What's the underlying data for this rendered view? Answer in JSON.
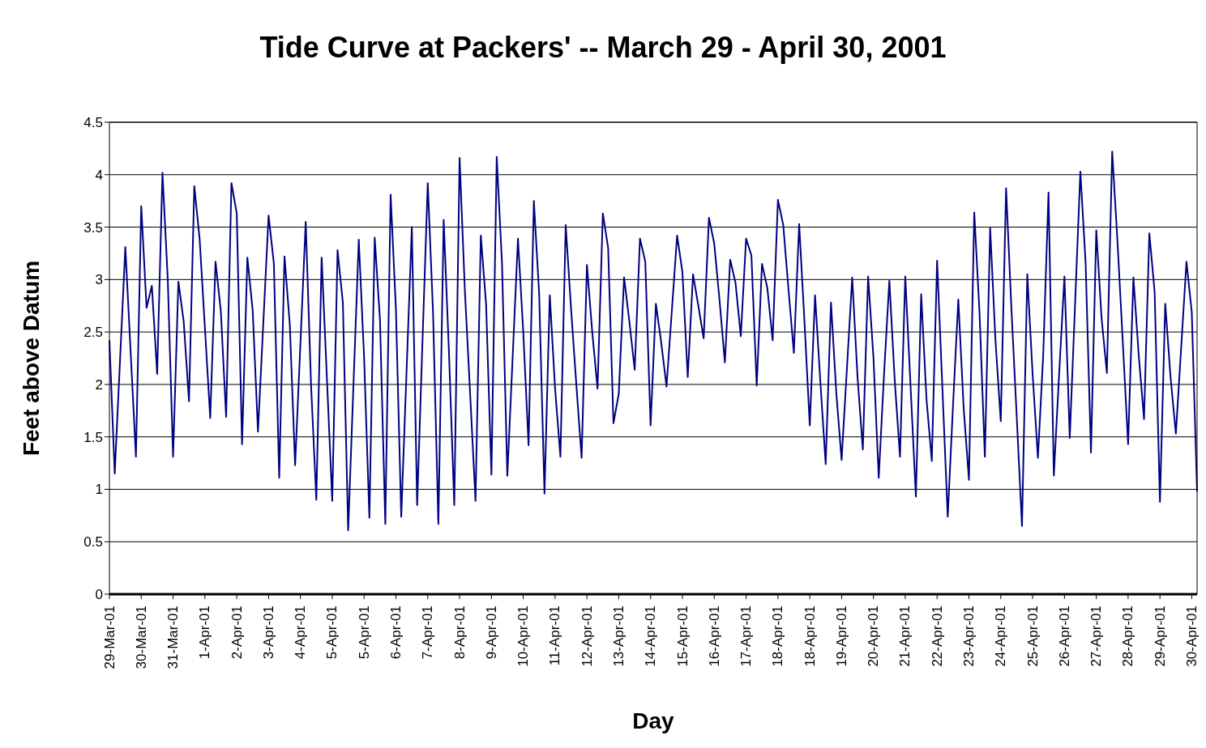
{
  "chart_data": {
    "type": "line",
    "title": "Tide Curve at Packers' --  March 29 - April 30, 2001",
    "xlabel": "Day",
    "ylabel": "Feet above Datum",
    "categories": [
      "29-Mar-01",
      null,
      null,
      null,
      null,
      null,
      "30-Mar-01",
      null,
      null,
      null,
      null,
      null,
      "31-Mar-01",
      null,
      null,
      null,
      null,
      null,
      "1-Apr-01",
      null,
      null,
      null,
      null,
      null,
      "2-Apr-01",
      null,
      null,
      null,
      null,
      null,
      "3-Apr-01",
      null,
      null,
      null,
      null,
      null,
      "4-Apr-01",
      null,
      null,
      null,
      null,
      null,
      "5-Apr-01",
      null,
      null,
      null,
      null,
      null,
      "5-Apr-01",
      null,
      null,
      null,
      null,
      null,
      "6-Apr-01",
      null,
      null,
      null,
      null,
      null,
      "7-Apr-01",
      null,
      null,
      null,
      null,
      null,
      "8-Apr-01",
      null,
      null,
      null,
      null,
      null,
      "9-Apr-01",
      null,
      null,
      null,
      null,
      null,
      "10-Apr-01",
      null,
      null,
      null,
      null,
      null,
      "11-Apr-01",
      null,
      null,
      null,
      null,
      null,
      "12-Apr-01",
      null,
      null,
      null,
      null,
      null,
      "13-Apr-01",
      null,
      null,
      null,
      null,
      null,
      "14-Apr-01",
      null,
      null,
      null,
      null,
      null,
      "15-Apr-01",
      null,
      null,
      null,
      null,
      null,
      "16-Apr-01",
      null,
      null,
      null,
      null,
      null,
      "17-Apr-01",
      null,
      null,
      null,
      null,
      null,
      "18-Apr-01",
      null,
      null,
      null,
      null,
      null,
      "18-Apr-01",
      null,
      null,
      null,
      null,
      null,
      "19-Apr-01",
      null,
      null,
      null,
      null,
      null,
      "20-Apr-01",
      null,
      null,
      null,
      null,
      null,
      "21-Apr-01",
      null,
      null,
      null,
      null,
      null,
      "22-Apr-01",
      null,
      null,
      null,
      null,
      null,
      "23-Apr-01",
      null,
      null,
      null,
      null,
      null,
      "24-Apr-01",
      null,
      null,
      null,
      null,
      null,
      "25-Apr-01",
      null,
      null,
      null,
      null,
      null,
      "26-Apr-01",
      null,
      null,
      null,
      null,
      null,
      "27-Apr-01",
      null,
      null,
      null,
      null,
      null,
      "28-Apr-01",
      null,
      null,
      null,
      null,
      null,
      "29-Apr-01",
      null,
      null,
      null,
      null,
      null,
      "30-Apr-01",
      null
    ],
    "series": [
      {
        "color": "#000080",
        "values": [
          2.42,
          1.15,
          2.23,
          3.31,
          2.31,
          1.31,
          3.7,
          2.73,
          2.94,
          2.1,
          4.02,
          3.0,
          1.31,
          2.98,
          2.6,
          1.84,
          3.89,
          3.39,
          2.54,
          1.68,
          3.17,
          2.7,
          1.69,
          3.92,
          3.63,
          1.43,
          3.21,
          2.71,
          1.55,
          2.58,
          3.61,
          3.15,
          1.11,
          3.22,
          2.57,
          1.23,
          2.39,
          3.55,
          2.0,
          0.9,
          3.21,
          2.05,
          0.89,
          3.28,
          2.78,
          0.61,
          2.0,
          3.38,
          2.26,
          0.73,
          3.4,
          2.61,
          0.67,
          3.81,
          2.72,
          0.74,
          2.12,
          3.5,
          0.85,
          2.4,
          3.92,
          2.68,
          0.67,
          3.57,
          2.3,
          0.85,
          4.16,
          2.89,
          1.9,
          0.89,
          3.42,
          2.76,
          1.14,
          4.17,
          3.15,
          1.13,
          2.26,
          3.39,
          2.5,
          1.42,
          3.75,
          2.86,
          0.96,
          2.85,
          1.96,
          1.31,
          3.52,
          2.73,
          2.0,
          1.3,
          3.14,
          2.5,
          1.96,
          3.63,
          3.3,
          1.63,
          1.91,
          3.02,
          2.6,
          2.14,
          3.39,
          3.17,
          1.61,
          2.77,
          2.4,
          1.98,
          2.7,
          3.42,
          3.07,
          2.07,
          3.05,
          2.75,
          2.44,
          3.59,
          3.34,
          2.8,
          2.21,
          3.19,
          2.97,
          2.46,
          3.39,
          3.23,
          1.99,
          3.15,
          2.92,
          2.42,
          3.76,
          3.52,
          2.9,
          2.3,
          3.53,
          2.6,
          1.61,
          2.85,
          2.02,
          1.24,
          2.78,
          1.92,
          1.28,
          2.15,
          3.02,
          2.07,
          1.38,
          3.03,
          2.26,
          1.11,
          2.1,
          2.99,
          2.05,
          1.31,
          3.03,
          1.98,
          0.93,
          2.86,
          1.86,
          1.27,
          3.18,
          1.96,
          0.74,
          1.8,
          2.81,
          1.78,
          1.09,
          3.64,
          2.68,
          1.31,
          3.49,
          2.42,
          1.65,
          3.87,
          2.73,
          1.7,
          0.65,
          3.05,
          2.1,
          1.3,
          2.28,
          3.83,
          1.13,
          2.1,
          3.03,
          1.49,
          2.76,
          4.03,
          3.15,
          1.35,
          3.47,
          2.63,
          2.11,
          4.22,
          3.36,
          2.4,
          1.43,
          3.02,
          2.28,
          1.67,
          3.44,
          2.88,
          0.88,
          2.77,
          2.07,
          1.53,
          2.35,
          3.17,
          2.69,
          0.98
        ]
      }
    ],
    "ylim": [
      0,
      4.5
    ],
    "yticks": [
      0,
      0.5,
      1,
      1.5,
      2,
      2.5,
      3,
      3.5,
      4,
      4.5
    ],
    "grid": "y"
  }
}
